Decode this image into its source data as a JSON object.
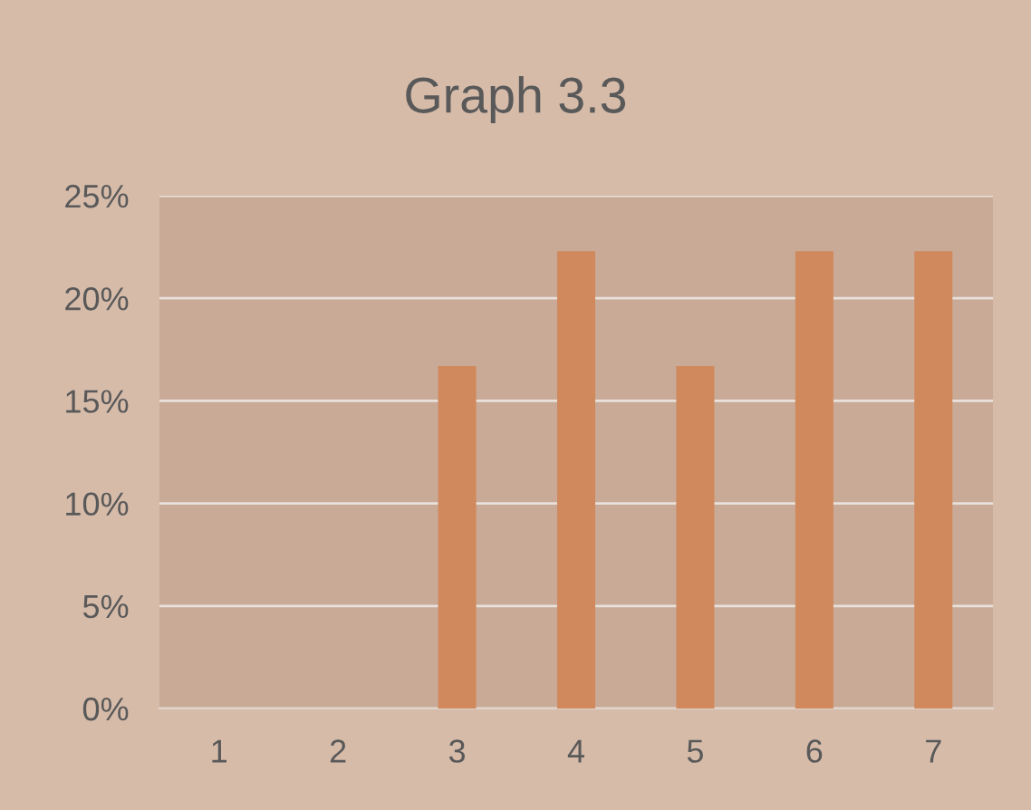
{
  "chart_data": {
    "type": "bar",
    "title": "Graph 3.3",
    "categories": [
      "1",
      "2",
      "3",
      "4",
      "5",
      "6",
      "7"
    ],
    "values": [
      0,
      0,
      16.7,
      22.3,
      16.7,
      22.3,
      22.3
    ],
    "color": "#d0895c",
    "ylim": [
      0,
      25
    ],
    "yticks": [
      {
        "value": 0,
        "label": "0%"
      },
      {
        "value": 5,
        "label": "5%"
      },
      {
        "value": 10,
        "label": "10%"
      },
      {
        "value": 15,
        "label": "15%"
      },
      {
        "value": 20,
        "label": "20%"
      },
      {
        "value": 25,
        "label": "25%"
      }
    ],
    "grid": "y"
  }
}
